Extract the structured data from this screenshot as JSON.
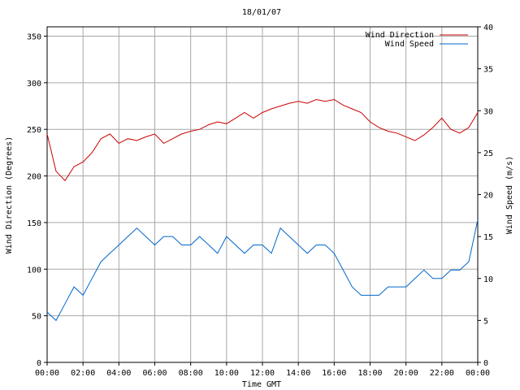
{
  "chart_data": {
    "type": "line",
    "title": "18/01/07",
    "xlabel": "Time GMT",
    "ylabel_left": "Wind Direction (Degrees)",
    "ylabel_right": "Wind Speed (m/s)",
    "x_ticks": [
      "00:00",
      "02:00",
      "04:00",
      "06:00",
      "08:00",
      "10:00",
      "12:00",
      "14:00",
      "16:00",
      "18:00",
      "20:00",
      "22:00",
      "00:00"
    ],
    "xlim_hours": [
      0,
      24
    ],
    "ylim_left": [
      0,
      360
    ],
    "ylim_right": [
      0,
      40
    ],
    "yticks_left": [
      0,
      50,
      100,
      150,
      200,
      250,
      300,
      350
    ],
    "yticks_right": [
      0,
      5,
      10,
      15,
      20,
      25,
      30,
      35,
      40
    ],
    "grid": true,
    "legend_position": "top-right",
    "series": [
      {
        "name": "Wind Direction",
        "axis": "left",
        "color": "#cc0000",
        "x": [
          0,
          0.5,
          1,
          1.5,
          2,
          2.5,
          3,
          3.5,
          4,
          4.5,
          5,
          5.5,
          6,
          6.5,
          7,
          7.5,
          8,
          8.5,
          9,
          9.5,
          10,
          10.5,
          11,
          11.5,
          12,
          12.5,
          13,
          13.5,
          14,
          14.5,
          15,
          15.5,
          16,
          16.5,
          17,
          17.5,
          18,
          18.5,
          19,
          19.5,
          20,
          20.5,
          21,
          21.5,
          22,
          22.5,
          23,
          23.5,
          24
        ],
        "values": [
          245,
          205,
          195,
          210,
          215,
          225,
          240,
          245,
          235,
          240,
          238,
          242,
          245,
          235,
          240,
          245,
          248,
          250,
          255,
          258,
          256,
          262,
          268,
          262,
          268,
          272,
          275,
          278,
          280,
          278,
          282,
          280,
          282,
          276,
          272,
          268,
          258,
          252,
          248,
          246,
          242,
          238,
          244,
          252,
          262,
          250,
          246,
          252,
          268
        ]
      },
      {
        "name": "Wind Speed",
        "axis": "right",
        "color": "#0066cc",
        "x": [
          0,
          0.5,
          1,
          1.5,
          2,
          2.5,
          3,
          3.5,
          4,
          4.5,
          5,
          5.5,
          6,
          6.5,
          7,
          7.5,
          8,
          8.5,
          9,
          9.5,
          10,
          10.5,
          11,
          11.5,
          12,
          12.5,
          13,
          13.5,
          14,
          14.5,
          15,
          15.5,
          16,
          16.5,
          17,
          17.5,
          18,
          18.5,
          19,
          19.5,
          20,
          20.5,
          21,
          21.5,
          22,
          22.5,
          23,
          23.5,
          24
        ],
        "values": [
          6,
          5,
          7,
          9,
          8,
          10,
          12,
          13,
          14,
          15,
          16,
          15,
          14,
          15,
          15,
          14,
          14,
          15,
          14,
          13,
          15,
          14,
          13,
          14,
          14,
          13,
          16,
          15,
          14,
          13,
          14,
          14,
          13,
          11,
          9,
          8,
          8,
          8,
          9,
          9,
          9,
          10,
          11,
          10,
          10,
          11,
          11,
          12,
          17
        ]
      }
    ]
  }
}
